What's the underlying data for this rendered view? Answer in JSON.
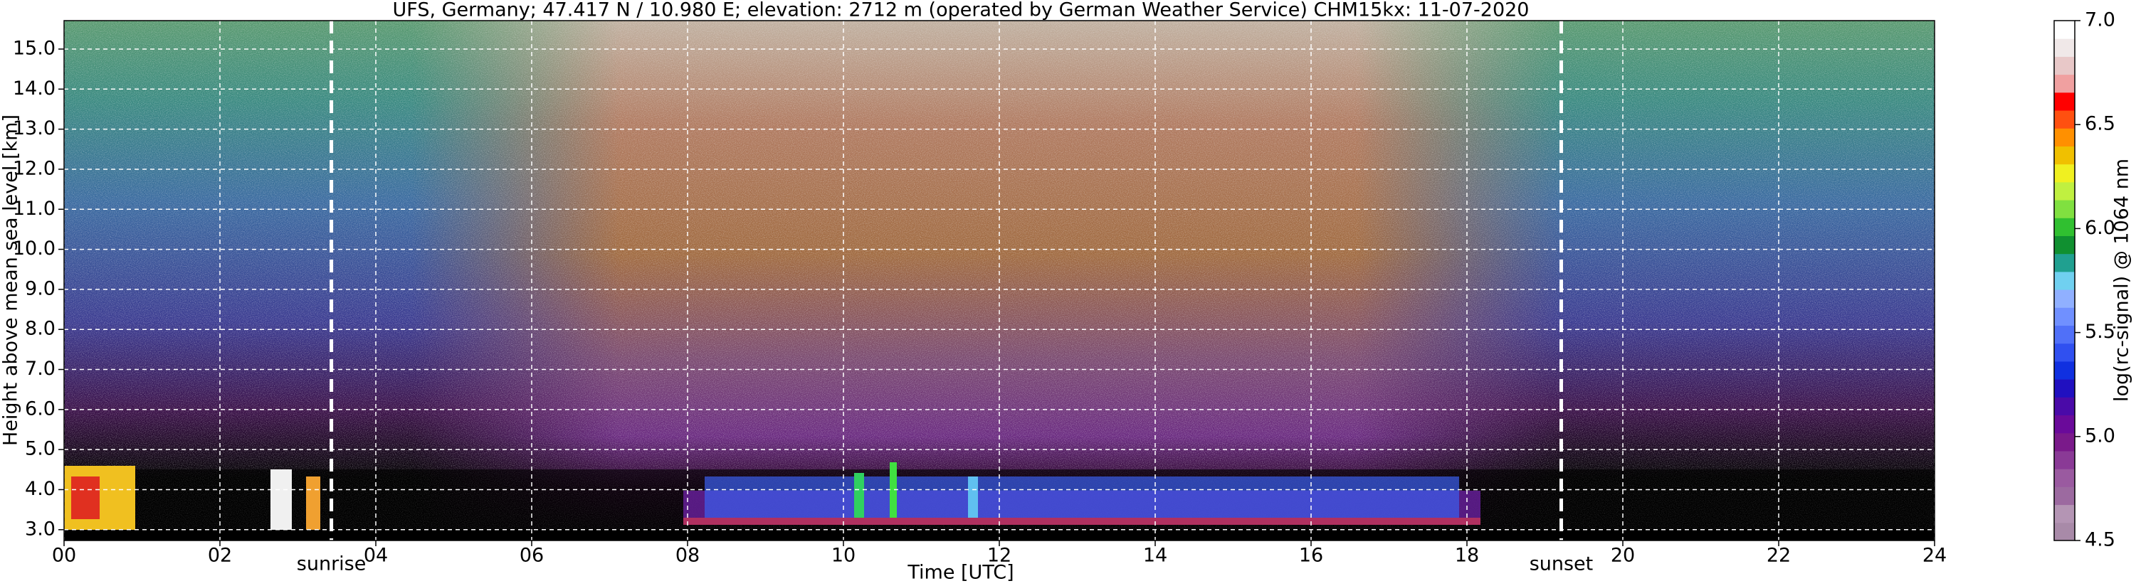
{
  "chart_data": {
    "type": "heatmap",
    "title": "UFS, Germany; 47.417 N / 10.980 E; elevation: 2712 m  (operated by German Weather Service)    CHM15kx: 11-07-2020",
    "x_label": "Time [UTC]",
    "y_label": "Height above mean sea level [km]",
    "xlim": [
      0,
      24
    ],
    "xticks": [
      {
        "value": 0,
        "label": "00"
      },
      {
        "value": 2,
        "label": "02"
      },
      {
        "value": 4,
        "label": "04"
      },
      {
        "value": 6,
        "label": "06"
      },
      {
        "value": 8,
        "label": "08"
      },
      {
        "value": 10,
        "label": "10"
      },
      {
        "value": 12,
        "label": "12"
      },
      {
        "value": 14,
        "label": "14"
      },
      {
        "value": 16,
        "label": "16"
      },
      {
        "value": 18,
        "label": "18"
      },
      {
        "value": 20,
        "label": "20"
      },
      {
        "value": 22,
        "label": "22"
      },
      {
        "value": 24,
        "label": "24"
      }
    ],
    "ylim": [
      2.73,
      15.71
    ],
    "yticks": [
      {
        "value": 3,
        "label": "3.0"
      },
      {
        "value": 4,
        "label": "4.0"
      },
      {
        "value": 5,
        "label": "5.0"
      },
      {
        "value": 6,
        "label": "6.0"
      },
      {
        "value": 7,
        "label": "7.0"
      },
      {
        "value": 8,
        "label": "8.0"
      },
      {
        "value": 9,
        "label": "9.0"
      },
      {
        "value": 10,
        "label": "10.0"
      },
      {
        "value": 11,
        "label": "11.0"
      },
      {
        "value": 12,
        "label": "12.0"
      },
      {
        "value": 13,
        "label": "13.0"
      },
      {
        "value": 14,
        "label": "14.0"
      },
      {
        "value": 15,
        "label": "15.0"
      }
    ],
    "grid": true,
    "annotations": [
      {
        "text": "sunrise",
        "x": 3.43
      },
      {
        "text": "sunset",
        "x": 19.21
      }
    ],
    "colorbar": {
      "label": "log(rc-signal) @ 1064 nm",
      "lim": [
        4.5,
        7.0
      ],
      "ticks": [
        {
          "value": 4.5,
          "label": "4.5"
        },
        {
          "value": 5.0,
          "label": "5.0"
        },
        {
          "value": 5.5,
          "label": "5.5"
        },
        {
          "value": 6.0,
          "label": "6.0"
        },
        {
          "value": 6.5,
          "label": "6.5"
        },
        {
          "value": 7.0,
          "label": "7.0"
        }
      ],
      "colors": [
        "#a88aa8",
        "#b495b4",
        "#9c6aa0",
        "#9a5aa0",
        "#8a3a96",
        "#7a1a8a",
        "#6a0a9a",
        "#4a0aa8",
        "#2010c0",
        "#1030e0",
        "#3050f0",
        "#5070f8",
        "#7090ff",
        "#90b0ff",
        "#70d0f0",
        "#20a090",
        "#109030",
        "#30c030",
        "#80e040",
        "#c0f040",
        "#f0f020",
        "#f0c000",
        "#ff9000",
        "#ff5010",
        "#ff0000",
        "#f0a0a0",
        "#e8c8c8",
        "#f0e8e8",
        "#ffffff"
      ]
    }
  }
}
